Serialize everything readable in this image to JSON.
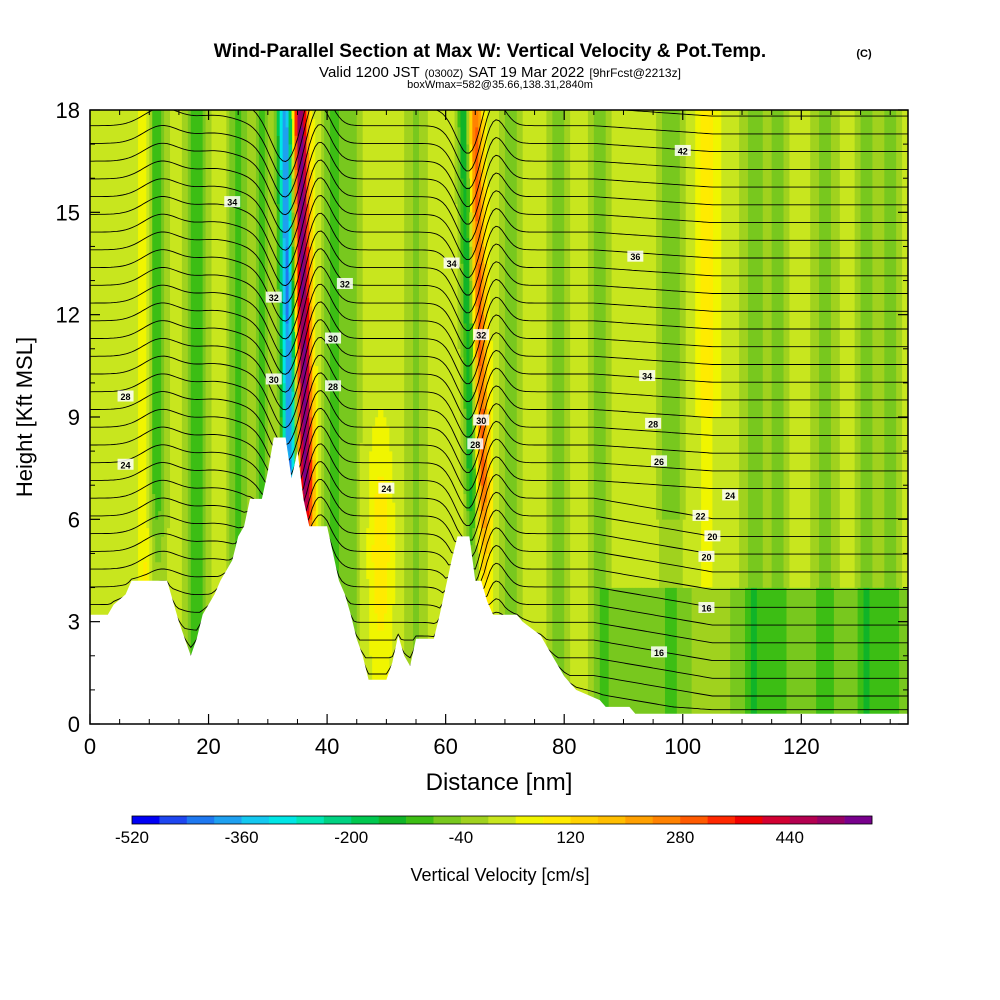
{
  "header": {
    "title_main": "Wind-Parallel Section at Max W: Vertical Velocity & Pot.Temp.",
    "title_mark": "(C)",
    "subtitle_valid": "Valid 1200 JST",
    "subtitle_utc": "(0300Z)",
    "subtitle_date": "SAT 19 Mar 2022",
    "subtitle_fcst": "[9hrFcst@2213z]",
    "box_info": "boxWmax=582@35.66,138.31,2840m"
  },
  "chart_data": {
    "type": "heatmap",
    "xlabel": "Distance [nm]",
    "ylabel": "Height [Kft MSL]",
    "xlim": [
      0,
      138
    ],
    "ylim": [
      0,
      18
    ],
    "x_ticks": [
      "0",
      "20",
      "40",
      "60",
      "80",
      "100",
      "120"
    ],
    "y_ticks": [
      "0",
      "3",
      "6",
      "9",
      "12",
      "15",
      "18"
    ],
    "colorbar": {
      "label": "Vertical Velocity [cm/s]",
      "min": -520,
      "max": 600,
      "step": 40,
      "tick_labels": [
        "-520",
        "-360",
        "-200",
        "-40",
        "120",
        "280",
        "440"
      ],
      "colors": [
        "#0000f5",
        "#1e46f0",
        "#1e78f0",
        "#1ea0f0",
        "#14c8f0",
        "#00e6e6",
        "#00e6b4",
        "#00d282",
        "#00c850",
        "#10b428",
        "#3cbe14",
        "#78c81e",
        "#a0d21e",
        "#c8e61e",
        "#f0f500",
        "#ffeb00",
        "#ffd200",
        "#ffbe00",
        "#ffa000",
        "#ff8200",
        "#ff5a00",
        "#ff2800",
        "#f00000",
        "#d20032",
        "#b40050",
        "#960064",
        "#78008c"
      ]
    },
    "theta_contour_labels": [
      "16",
      "16",
      "20",
      "20",
      "22",
      "24",
      "24",
      "24",
      "26",
      "28",
      "28",
      "28",
      "28",
      "30",
      "30",
      "30",
      "32",
      "32",
      "32",
      "34",
      "34",
      "34",
      "36",
      "42"
    ],
    "terrain_kft": [
      [
        0,
        3.2
      ],
      [
        3,
        3.2
      ],
      [
        4,
        3.5
      ],
      [
        6,
        3.8
      ],
      [
        7,
        4.2
      ],
      [
        13,
        4.2
      ],
      [
        14,
        3.6
      ],
      [
        15,
        3.0
      ],
      [
        16,
        2.5
      ],
      [
        17,
        2.0
      ],
      [
        18,
        2.5
      ],
      [
        19,
        3.2
      ],
      [
        21,
        3.8
      ],
      [
        22,
        4.2
      ],
      [
        24,
        4.8
      ],
      [
        25,
        5.5
      ],
      [
        26,
        5.8
      ],
      [
        27,
        6.6
      ],
      [
        29,
        6.6
      ],
      [
        30,
        7.4
      ],
      [
        31,
        8.4
      ],
      [
        33,
        8.4
      ],
      [
        34,
        7.2
      ],
      [
        35,
        8.0
      ],
      [
        36,
        6.6
      ],
      [
        37,
        5.8
      ],
      [
        40,
        5.8
      ],
      [
        41,
        5.0
      ],
      [
        42,
        4.2
      ],
      [
        43,
        3.8
      ],
      [
        44,
        3.2
      ],
      [
        45,
        2.5
      ],
      [
        46,
        2.0
      ],
      [
        47,
        1.3
      ],
      [
        50,
        1.3
      ],
      [
        51,
        1.8
      ],
      [
        52,
        2.6
      ],
      [
        53,
        2.0
      ],
      [
        54,
        1.7
      ],
      [
        55,
        2.5
      ],
      [
        58,
        2.5
      ],
      [
        59,
        3.2
      ],
      [
        61,
        4.8
      ],
      [
        62,
        5.5
      ],
      [
        64,
        5.5
      ],
      [
        65,
        4.2
      ],
      [
        66,
        4.2
      ],
      [
        67,
        3.6
      ],
      [
        68,
        3.2
      ],
      [
        72,
        3.2
      ],
      [
        73,
        3.0
      ],
      [
        76,
        2.6
      ],
      [
        78,
        2.0
      ],
      [
        80,
        1.4
      ],
      [
        82,
        1.0
      ],
      [
        86,
        0.7
      ],
      [
        87,
        0.5
      ],
      [
        91,
        0.5
      ],
      [
        92,
        0.3
      ],
      [
        138,
        0.3
      ]
    ]
  }
}
